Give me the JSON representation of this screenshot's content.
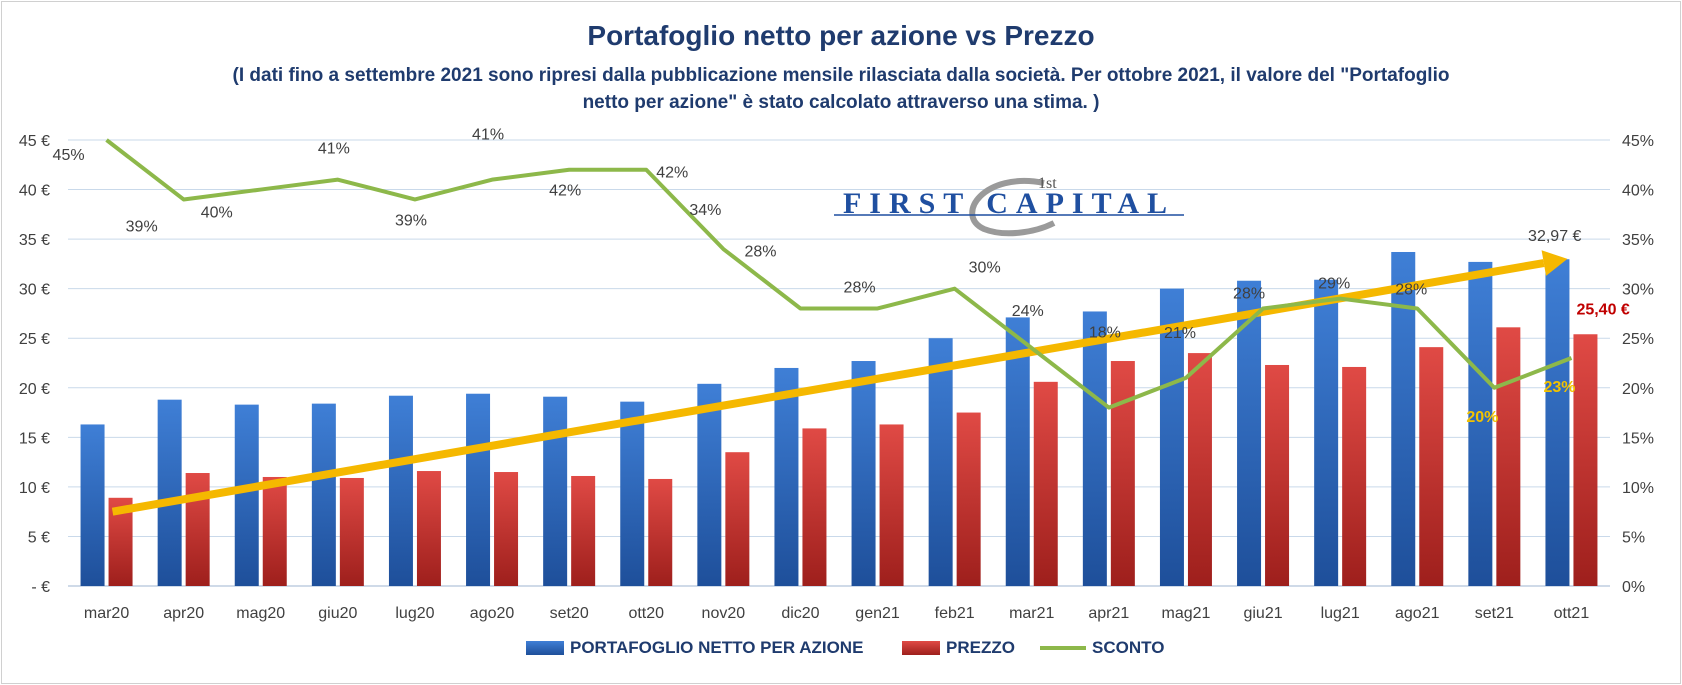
{
  "title": "Portafoglio netto per azione vs Prezzo",
  "subtitle_line1": "(I dati fino a settembre 2021 sono ripresi dalla pubblicazione mensile rilasciata dalla società. Per ottobre 2021, il valore del \"Portafoglio",
  "subtitle_line2": "netto per azione\" è stato calcolato attraverso una stima. )",
  "logo": {
    "sup": "1st",
    "text": "FIRST CAPITAL"
  },
  "colors": {
    "nav": "#2f6bbf",
    "price": "#c0312e",
    "discount": "#8db84a",
    "trend": "#f5b800",
    "grid": "#c9d9ea",
    "text": "#1f3b6e"
  },
  "chart_data": {
    "type": "bar",
    "categories": [
      "mar20",
      "apr20",
      "mag20",
      "giu20",
      "lug20",
      "ago20",
      "set20",
      "ott20",
      "nov20",
      "dic20",
      "gen21",
      "feb21",
      "mar21",
      "apr21",
      "mag21",
      "giu21",
      "lug21",
      "ago21",
      "set21",
      "ott21"
    ],
    "series": [
      {
        "name": "PORTAFOGLIO NETTO PER AZIONE",
        "type": "bar",
        "axis": "left",
        "values": [
          16.3,
          18.8,
          18.3,
          18.4,
          19.2,
          19.4,
          19.1,
          18.6,
          20.4,
          22.0,
          22.7,
          25.0,
          27.1,
          27.7,
          30.0,
          30.8,
          30.9,
          33.7,
          32.7,
          32.97
        ]
      },
      {
        "name": "PREZZO",
        "type": "bar",
        "axis": "left",
        "values": [
          8.9,
          11.4,
          11.0,
          10.9,
          11.6,
          11.5,
          11.1,
          10.8,
          13.5,
          15.9,
          16.3,
          17.5,
          20.6,
          22.7,
          23.5,
          22.3,
          22.1,
          24.1,
          26.1,
          25.4
        ]
      },
      {
        "name": "SCONTO",
        "type": "line",
        "axis": "right",
        "values": [
          45,
          39,
          40,
          41,
          39,
          41,
          42,
          42,
          34,
          28,
          28,
          30,
          24,
          18,
          21,
          28,
          29,
          28,
          20,
          23
        ]
      }
    ],
    "left_axis": {
      "ylim": [
        0,
        45
      ],
      "ticks": [
        "- €",
        "5 €",
        "10 €",
        "15 €",
        "20 €",
        "25 €",
        "30 €",
        "35 €",
        "40 €",
        "45 €"
      ]
    },
    "right_axis": {
      "ylim": [
        0,
        45
      ],
      "ticks": [
        "0%",
        "5%",
        "10%",
        "15%",
        "20%",
        "25%",
        "30%",
        "35%",
        "40%",
        "45%"
      ]
    },
    "sconto_labels": [
      "45%",
      "39%",
      "40%",
      "41%",
      "39%",
      "41%",
      "42%",
      "42%",
      "34%",
      "28%",
      "28%",
      "30%",
      "24%",
      "18%",
      "21%",
      "28%",
      "29%",
      "28%",
      "20%",
      "23%"
    ],
    "nav_last_label": "32,97 €",
    "price_last_label": "25,40 €",
    "trend": {
      "start_value": 7.5,
      "end_value": 33.0
    },
    "legend": [
      "PORTAFOGLIO NETTO PER AZIONE",
      "PREZZO",
      "SCONTO"
    ],
    "legend_position": "bottom",
    "grid": true
  }
}
